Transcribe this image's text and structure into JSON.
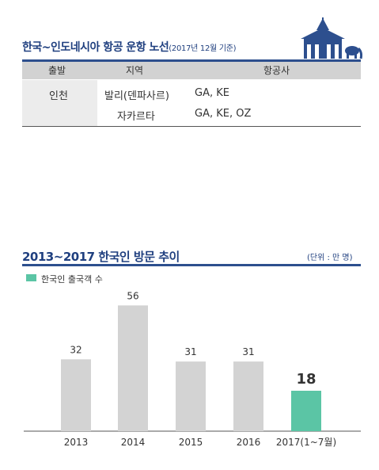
{
  "route_section": {
    "title_main": "한국~인도네시아 항공 운항 노선",
    "title_note": "(2017년 12월 기준)",
    "headers": [
      "출발",
      "지역",
      "항공사"
    ],
    "departure": "인천",
    "rows": [
      {
        "region": "발리(덴파사르)",
        "airlines": "GA, KE"
      },
      {
        "region": "자카르타",
        "airlines": "GA, KE, OZ"
      }
    ]
  },
  "chart_section": {
    "title": "2013~2017 한국인 방문 추이",
    "unit": "(단위 : 만 명)",
    "legend": "한국인 출국객 수"
  },
  "colors": {
    "title_blue": "#1f3f7f",
    "bar_gray": "#d3d3d3",
    "bar_highlight": "#5bc5a5"
  },
  "chart_data": {
    "type": "bar",
    "title": "2013~2017 한국인 방문 추이",
    "categories": [
      "2013",
      "2014",
      "2015",
      "2016",
      "2017(1~7월)"
    ],
    "series": [
      {
        "name": "한국인 출국객 수",
        "values": [
          32,
          56,
          31,
          31,
          18
        ]
      }
    ],
    "highlight_index": 4,
    "unit": "(단위 : 만 명)",
    "ylim": [
      0,
      60
    ],
    "grid": false,
    "legend_position": "top-left"
  }
}
